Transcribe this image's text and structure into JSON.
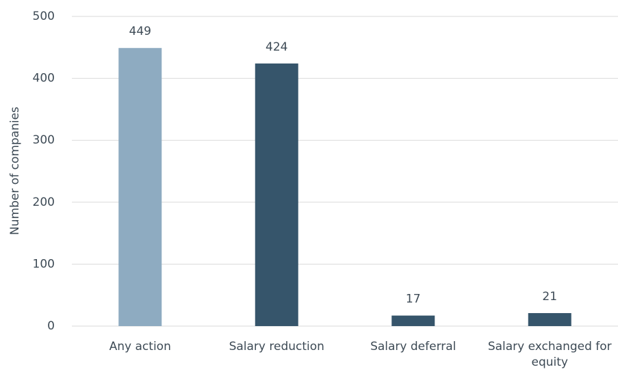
{
  "chart_data": {
    "type": "bar",
    "y_axis_label": "Number of companies",
    "categories": [
      "Any action",
      "Salary reduction",
      "Salary deferral",
      "Salary exchanged for equity"
    ],
    "values": [
      449,
      424,
      17,
      21
    ],
    "colors": [
      "#8eabc1",
      "#36556b",
      "#36556b",
      "#36556b"
    ],
    "ylim": [
      0,
      500
    ],
    "yticks": [
      0,
      100,
      200,
      300,
      400,
      500
    ],
    "grid": true
  }
}
